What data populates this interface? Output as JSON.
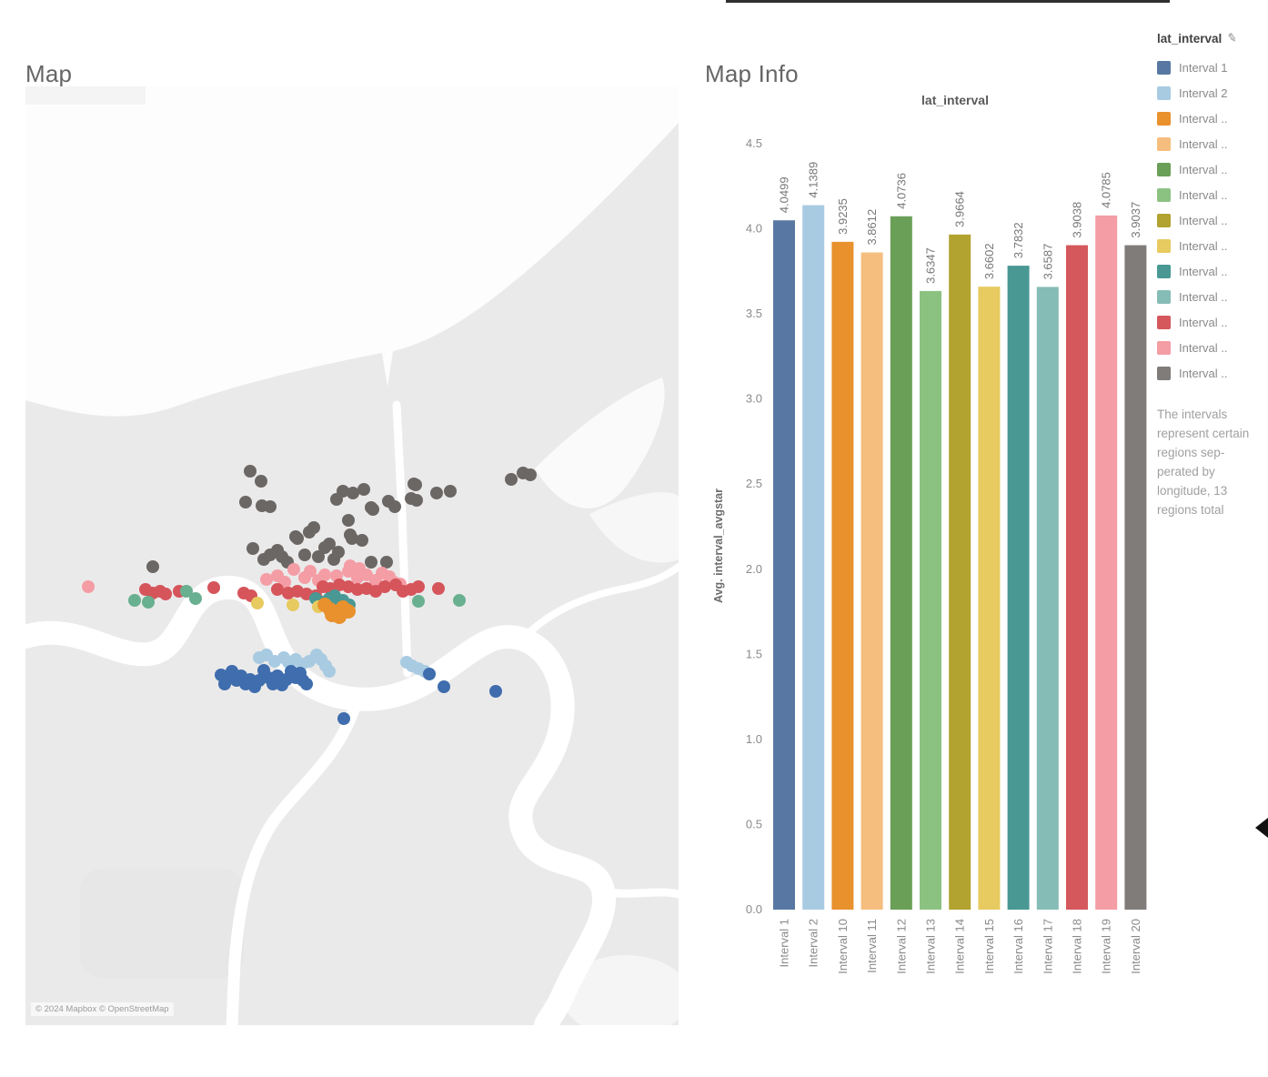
{
  "map_panel": {
    "title": "Map",
    "attribution": "© 2024 Mapbox © OpenStreetMap",
    "dot_groups": [
      {
        "name": "gray",
        "color": "#6b6765",
        "r": 7,
        "points": [
          [
            247,
            423
          ],
          [
            259,
            434
          ],
          [
            242,
            457
          ],
          [
            260,
            461
          ],
          [
            269,
            462
          ],
          [
            349,
            445
          ],
          [
            360,
            447
          ],
          [
            372,
            443
          ],
          [
            342,
            454
          ],
          [
            380,
            463
          ],
          [
            399,
            456
          ],
          [
            406,
            462
          ],
          [
            427,
            437
          ],
          [
            424,
            453
          ],
          [
            429,
            438
          ],
          [
            430,
            455
          ],
          [
            452,
            447
          ],
          [
            467,
            445
          ],
          [
            534,
            432
          ],
          [
            547,
            425
          ],
          [
            555,
            427
          ],
          [
            317,
            485
          ],
          [
            297,
            495
          ],
          [
            334,
            503
          ],
          [
            355,
            477
          ],
          [
            359,
            497
          ],
          [
            250,
            508
          ],
          [
            262,
            520
          ],
          [
            269,
            515
          ],
          [
            277,
            510
          ],
          [
            282,
            517
          ],
          [
            299,
            497
          ],
          [
            307,
            515
          ],
          [
            322,
            517
          ],
          [
            329,
            507
          ],
          [
            339,
            520
          ],
          [
            140,
            528
          ],
          [
            380,
            523
          ],
          [
            397,
            523
          ],
          [
            357,
            493
          ],
          [
            382,
            465
          ],
          [
            312,
            490
          ],
          [
            344,
            512
          ],
          [
            370,
            499
          ],
          [
            288,
            523
          ]
        ]
      },
      {
        "name": "pink",
        "color": "#f49da5",
        "r": 7,
        "points": [
          [
            69,
            550
          ],
          [
            265,
            542
          ],
          [
            277,
            538
          ],
          [
            285,
            545
          ],
          [
            295,
            531
          ],
          [
            307,
            540
          ],
          [
            313,
            533
          ],
          [
            322,
            543
          ],
          [
            329,
            537
          ],
          [
            342,
            538
          ],
          [
            355,
            533
          ],
          [
            365,
            540
          ],
          [
            375,
            537
          ],
          [
            385,
            543
          ],
          [
            405,
            545
          ],
          [
            357,
            527
          ],
          [
            367,
            530
          ],
          [
            392,
            535
          ],
          [
            400,
            539
          ],
          [
            412,
            547
          ]
        ]
      },
      {
        "name": "red",
        "color": "#d5555b",
        "r": 7,
        "points": [
          [
            132,
            553
          ],
          [
            140,
            557
          ],
          [
            148,
            555
          ],
          [
            154,
            558
          ],
          [
            169,
            555
          ],
          [
            207,
            551
          ],
          [
            240,
            557
          ],
          [
            248,
            560
          ],
          [
            277,
            553
          ],
          [
            289,
            557
          ],
          [
            299,
            555
          ],
          [
            309,
            558
          ],
          [
            319,
            560
          ],
          [
            327,
            550
          ],
          [
            335,
            552
          ],
          [
            345,
            548
          ],
          [
            355,
            550
          ],
          [
            365,
            553
          ],
          [
            375,
            552
          ],
          [
            385,
            555
          ],
          [
            395,
            550
          ],
          [
            407,
            548
          ],
          [
            415,
            555
          ],
          [
            424,
            553
          ],
          [
            454,
            552
          ],
          [
            432,
            550
          ]
        ]
      },
      {
        "name": "green",
        "color": "#68b090",
        "r": 7,
        "points": [
          [
            120,
            565
          ],
          [
            135,
            567
          ],
          [
            177,
            555
          ],
          [
            187,
            563
          ],
          [
            432,
            566
          ],
          [
            477,
            565
          ]
        ]
      },
      {
        "name": "teal",
        "color": "#499894",
        "r": 7,
        "points": [
          [
            319,
            563
          ],
          [
            327,
            567
          ],
          [
            334,
            563
          ],
          [
            342,
            568
          ],
          [
            349,
            565
          ],
          [
            356,
            570
          ],
          [
            340,
            560
          ]
        ]
      },
      {
        "name": "yellow",
        "color": "#e7ca60",
        "r": 7,
        "points": [
          [
            255,
            568
          ],
          [
            294,
            570
          ],
          [
            322,
            572
          ]
        ]
      },
      {
        "name": "orange",
        "color": "#e8912d",
        "r": 8,
        "points": [
          [
            329,
            570
          ],
          [
            335,
            575
          ],
          [
            342,
            578
          ],
          [
            349,
            573
          ],
          [
            355,
            577
          ],
          [
            337,
            581
          ],
          [
            345,
            583
          ]
        ]
      },
      {
        "name": "lightblue",
        "color": "#a8cbe2",
        "r": 7,
        "points": [
          [
            257,
            628
          ],
          [
            265,
            625
          ],
          [
            274,
            632
          ],
          [
            284,
            628
          ],
          [
            289,
            633
          ],
          [
            297,
            630
          ],
          [
            304,
            635
          ],
          [
            312,
            632
          ],
          [
            320,
            625
          ],
          [
            325,
            630
          ],
          [
            330,
            637
          ],
          [
            334,
            643
          ],
          [
            419,
            633
          ],
          [
            425,
            637
          ],
          [
            432,
            640
          ],
          [
            439,
            643
          ]
        ]
      },
      {
        "name": "darkblue",
        "color": "#3f6dad",
        "r": 7,
        "points": [
          [
            215,
            647
          ],
          [
            222,
            652
          ],
          [
            227,
            643
          ],
          [
            232,
            653
          ],
          [
            237,
            648
          ],
          [
            242,
            657
          ],
          [
            247,
            652
          ],
          [
            252,
            660
          ],
          [
            257,
            653
          ],
          [
            262,
            642
          ],
          [
            267,
            650
          ],
          [
            272,
            657
          ],
          [
            277,
            648
          ],
          [
            282,
            658
          ],
          [
            287,
            652
          ],
          [
            292,
            643
          ],
          [
            297,
            650
          ],
          [
            302,
            645
          ],
          [
            305,
            653
          ],
          [
            350,
            695
          ],
          [
            444,
            646
          ],
          [
            460,
            660
          ],
          [
            517,
            665
          ],
          [
            309,
            657
          ],
          [
            219,
            657
          ]
        ]
      }
    ]
  },
  "chart_panel": {
    "title": "Map Info"
  },
  "chart_data": {
    "type": "bar",
    "title": "lat_interval",
    "xlabel": "",
    "ylabel": "Avg. interval_avgstar",
    "categories": [
      "Interval 1",
      "Interval 2",
      "Interval 10",
      "Interval 11",
      "Interval 12",
      "Interval 13",
      "Interval 14",
      "Interval 15",
      "Interval 16",
      "Interval 17",
      "Interval 18",
      "Interval 19",
      "Interval 20"
    ],
    "values": [
      4.0499,
      4.1389,
      3.9235,
      3.8612,
      4.0736,
      3.6347,
      3.9664,
      3.6602,
      3.7832,
      3.6587,
      3.9038,
      4.0785,
      3.9037
    ],
    "value_labels": [
      "4.0499",
      "4.1389",
      "3.9235",
      "3.8612",
      "4.0736",
      "3.6347",
      "3.9664",
      "3.6602",
      "3.7832",
      "3.6587",
      "3.9038",
      "4.0785",
      "3.9037"
    ],
    "colors": [
      "#5878a3",
      "#a8cbe2",
      "#e8912d",
      "#f5be7e",
      "#6a9f58",
      "#8cc281",
      "#b2a230",
      "#e7ca60",
      "#499894",
      "#86bcb6",
      "#d5585c",
      "#f49da5",
      "#7f7c7a"
    ],
    "ylim": [
      0,
      4.5
    ],
    "yticks": [
      0,
      0.5,
      1,
      1.5,
      2,
      2.5,
      3,
      3.5,
      4,
      4.5
    ],
    "grid": "off",
    "legend_position": "right"
  },
  "legend": {
    "title": "lat_interval",
    "items": [
      {
        "label": "Interval 1",
        "color": "#5878a3"
      },
      {
        "label": "Interval 2",
        "color": "#a8cbe2"
      },
      {
        "label": "Interval ..",
        "color": "#e8912d"
      },
      {
        "label": "Interval ..",
        "color": "#f5be7e"
      },
      {
        "label": "Interval ..",
        "color": "#6a9f58"
      },
      {
        "label": "Interval ..",
        "color": "#8cc281"
      },
      {
        "label": "Interval ..",
        "color": "#b2a230"
      },
      {
        "label": "Interval ..",
        "color": "#e7ca60"
      },
      {
        "label": "Interval ..",
        "color": "#499894"
      },
      {
        "label": "Interval ..",
        "color": "#86bcb6"
      },
      {
        "label": "Interval ..",
        "color": "#d5585c"
      },
      {
        "label": "Interval ..",
        "color": "#f49da5"
      },
      {
        "label": "Interval ..",
        "color": "#7f7c7a"
      }
    ],
    "note": "The intervals represent certain regions sep-perated by longitude, 13 regions total"
  }
}
